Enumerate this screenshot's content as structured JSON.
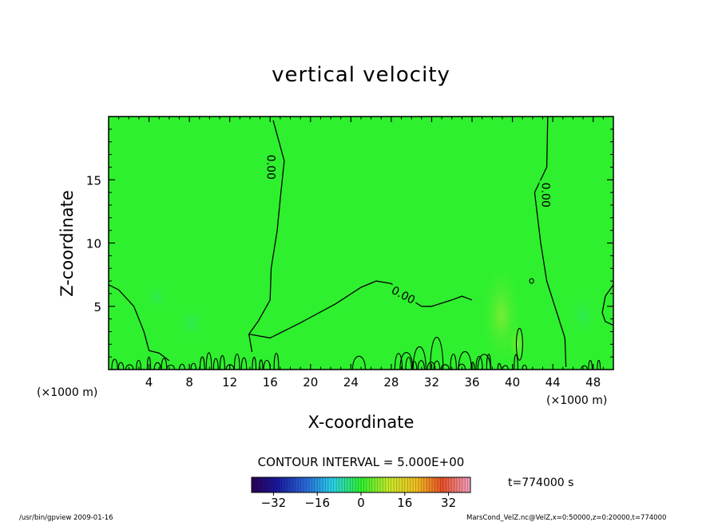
{
  "chart_data": {
    "type": "contour",
    "title": "vertical velocity",
    "xlabel": "X-coordinate",
    "ylabel": "Z-coordinate",
    "x_unit_left": "(×1000 m)",
    "x_unit_right": "(×1000 m)",
    "xlim": [
      0,
      50
    ],
    "ylim": [
      0,
      20
    ],
    "x_ticks": [
      4,
      8,
      12,
      16,
      20,
      24,
      28,
      32,
      36,
      40,
      44,
      48
    ],
    "y_ticks": [
      5,
      10,
      15
    ],
    "contour_interval_text": "CONTOUR INTERVAL = 5.000E+00",
    "contour_labels": [
      "0.00",
      "0.00",
      "0.00"
    ],
    "time_text": "t=774000 s",
    "colorbar_ticks": [
      -32,
      -16,
      0,
      16,
      32
    ],
    "colorbar_range": [
      -40,
      40
    ],
    "fill_color": "#2ef02e",
    "zero_contour_lines": [
      {
        "name": "zero-contour-left-column",
        "points": [
          [
            14.2,
            1.4
          ],
          [
            13.9,
            2.8
          ],
          [
            14.8,
            3.8
          ],
          [
            16.0,
            5.5
          ],
          [
            16.1,
            8.0
          ],
          [
            16.7,
            11.0
          ],
          [
            17.0,
            13.5
          ],
          [
            17.4,
            16.5
          ],
          [
            16.3,
            19.7
          ]
        ]
      },
      {
        "name": "zero-contour-mid-ridge",
        "points": [
          [
            13.9,
            2.8
          ],
          [
            16.0,
            2.5
          ],
          [
            19.0,
            3.7
          ],
          [
            22.5,
            5.2
          ],
          [
            25.0,
            6.5
          ],
          [
            26.5,
            7.0
          ],
          [
            28.0,
            6.8
          ],
          [
            29.0,
            6.0
          ],
          [
            31.0,
            5.0
          ],
          [
            32.0,
            5.0
          ],
          [
            34.0,
            5.5
          ],
          [
            35.0,
            5.8
          ],
          [
            36.0,
            5.5
          ]
        ]
      },
      {
        "name": "zero-contour-right-column",
        "points": [
          [
            43.5,
            20.0
          ],
          [
            43.4,
            16.0
          ],
          [
            42.2,
            14.0
          ],
          [
            42.8,
            10.0
          ],
          [
            43.4,
            7.0
          ],
          [
            44.4,
            4.5
          ],
          [
            45.2,
            2.5
          ],
          [
            45.3,
            0.2
          ]
        ]
      },
      {
        "name": "zero-contour-left-edge",
        "points": [
          [
            0.0,
            6.7
          ],
          [
            1.0,
            6.3
          ],
          [
            2.5,
            5.0
          ],
          [
            3.5,
            3.0
          ],
          [
            4.0,
            1.5
          ],
          [
            5.0,
            1.3
          ],
          [
            6.0,
            0.7
          ]
        ]
      },
      {
        "name": "zero-contour-right-edge",
        "points": [
          [
            50.0,
            6.7
          ],
          [
            49.2,
            5.8
          ],
          [
            48.9,
            4.5
          ],
          [
            49.2,
            3.8
          ],
          [
            50.0,
            3.5
          ]
        ]
      }
    ]
  },
  "footer": {
    "program": "/usr/bin/gpview   2009-01-16",
    "source": "MarsCond_VelZ.nc@VelZ,x=0:50000,z=0:20000,t=774000"
  }
}
